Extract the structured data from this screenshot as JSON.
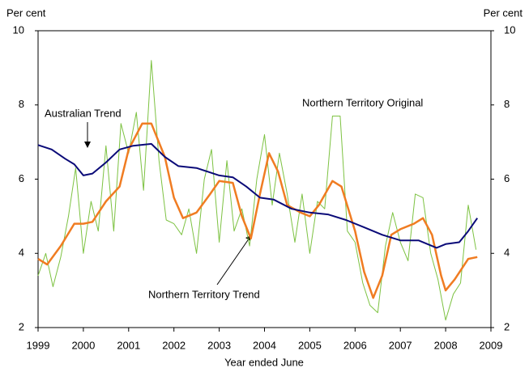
{
  "chart_data": {
    "type": "line",
    "y_label": "Per cent",
    "y2_label": "Per cent",
    "x_label": "Year ended June",
    "xlim": [
      1999,
      2009
    ],
    "xticks": [
      1999,
      2000,
      2001,
      2002,
      2003,
      2004,
      2005,
      2006,
      2007,
      2008,
      2009
    ],
    "ylim": [
      2,
      10
    ],
    "yticks": [
      2,
      4,
      6,
      8,
      10
    ],
    "y2lim": [
      2,
      10
    ],
    "y2ticks": [
      2,
      4,
      6,
      8,
      10
    ],
    "grid": false,
    "annotations": [
      "Australian Trend",
      "Northern Territory Original",
      "Northern Territory Trend"
    ],
    "series": [
      {
        "name": "Northern Territory Original",
        "color": "#7dc242",
        "width": 1,
        "x": [
          1999.0,
          1999.17,
          1999.33,
          1999.5,
          1999.67,
          1999.83,
          2000.0,
          2000.17,
          2000.33,
          2000.5,
          2000.67,
          2000.83,
          2001.0,
          2001.17,
          2001.33,
          2001.5,
          2001.67,
          2001.83,
          2002.0,
          2002.17,
          2002.33,
          2002.5,
          2002.67,
          2002.83,
          2003.0,
          2003.17,
          2003.33,
          2003.5,
          2003.67,
          2003.83,
          2004.0,
          2004.17,
          2004.33,
          2004.5,
          2004.67,
          2004.83,
          2005.0,
          2005.17,
          2005.33,
          2005.5,
          2005.67,
          2005.83,
          2006.0,
          2006.17,
          2006.33,
          2006.5,
          2006.67,
          2006.83,
          2007.0,
          2007.17,
          2007.33,
          2007.5,
          2007.67,
          2007.83,
          2008.0,
          2008.17,
          2008.33,
          2008.5,
          2008.67
        ],
        "values": [
          3.4,
          4.0,
          3.1,
          3.9,
          5.0,
          6.3,
          4.0,
          5.4,
          4.6,
          6.9,
          4.6,
          7.5,
          6.7,
          7.8,
          5.7,
          9.2,
          6.5,
          4.9,
          4.8,
          4.5,
          5.2,
          4.0,
          6.0,
          6.8,
          4.3,
          6.5,
          4.6,
          5.2,
          4.2,
          6.0,
          7.2,
          5.3,
          6.7,
          5.6,
          4.3,
          5.6,
          4.0,
          5.4,
          5.2,
          7.7,
          7.7,
          4.6,
          4.3,
          3.2,
          2.6,
          2.4,
          4.2,
          5.1,
          4.3,
          3.8,
          5.6,
          5.5,
          4.0,
          3.3,
          2.2,
          2.9,
          3.2,
          5.3,
          4.1
        ]
      },
      {
        "name": "Northern Territory Trend",
        "color": "#f07c22",
        "width": 2.5,
        "x": [
          1999.0,
          1999.2,
          1999.5,
          1999.8,
          2000.0,
          2000.2,
          2000.5,
          2000.8,
          2001.0,
          2001.3,
          2001.5,
          2001.8,
          2002.0,
          2002.2,
          2002.5,
          2002.8,
          2003.0,
          2003.3,
          2003.5,
          2003.7,
          2003.9,
          2004.1,
          2004.3,
          2004.5,
          2004.8,
          2005.0,
          2005.2,
          2005.5,
          2005.7,
          2006.0,
          2006.2,
          2006.4,
          2006.6,
          2006.8,
          2007.0,
          2007.3,
          2007.5,
          2007.7,
          2007.9,
          2008.0,
          2008.2,
          2008.5,
          2008.7
        ],
        "values": [
          3.85,
          3.7,
          4.2,
          4.8,
          4.8,
          4.85,
          5.4,
          5.8,
          6.8,
          7.5,
          7.5,
          6.6,
          5.5,
          4.95,
          5.1,
          5.6,
          5.95,
          5.9,
          5.0,
          4.4,
          5.6,
          6.7,
          6.2,
          5.3,
          5.1,
          5.0,
          5.3,
          5.95,
          5.8,
          4.6,
          3.5,
          2.8,
          3.4,
          4.5,
          4.65,
          4.8,
          4.95,
          4.5,
          3.4,
          3.0,
          3.3,
          3.85,
          3.9
        ]
      },
      {
        "name": "Australian Trend",
        "color": "#0a0a78",
        "width": 2,
        "x": [
          1999.0,
          1999.3,
          1999.6,
          1999.8,
          2000.0,
          2000.2,
          2000.5,
          2000.8,
          2001.1,
          2001.5,
          2001.8,
          2002.1,
          2002.5,
          2003.0,
          2003.3,
          2003.6,
          2003.9,
          2004.2,
          2004.6,
          2005.0,
          2005.4,
          2005.8,
          2006.2,
          2006.6,
          2007.0,
          2007.4,
          2007.8,
          2008.0,
          2008.3,
          2008.5,
          2008.7
        ],
        "values": [
          6.92,
          6.8,
          6.55,
          6.4,
          6.1,
          6.15,
          6.45,
          6.8,
          6.9,
          6.95,
          6.6,
          6.35,
          6.3,
          6.1,
          6.05,
          5.8,
          5.5,
          5.45,
          5.2,
          5.1,
          5.05,
          4.9,
          4.7,
          4.5,
          4.35,
          4.35,
          4.15,
          4.25,
          4.3,
          4.6,
          4.95
        ]
      }
    ]
  }
}
